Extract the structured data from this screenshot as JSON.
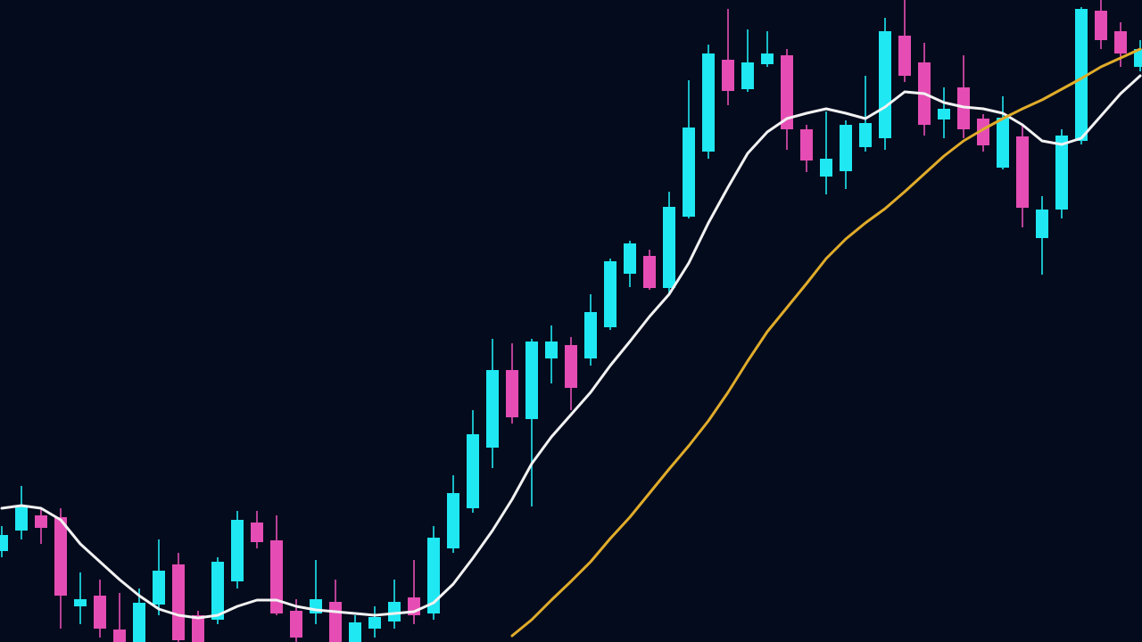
{
  "chart_data": {
    "type": "candlestick",
    "up_color": "#1fe8f2",
    "down_color": "#e54db4",
    "background": "#040b1d",
    "ylim": [
      0,
      720
    ],
    "open": [
      102,
      125,
      142,
      140,
      40,
      52,
      14,
      0,
      42,
      87,
      30,
      25,
      68,
      134,
      114,
      35,
      32,
      45,
      0,
      15,
      23,
      50,
      32,
      105,
      150,
      218,
      305,
      250,
      318,
      333,
      318,
      353,
      413,
      433,
      397,
      477,
      550,
      653,
      620,
      648,
      658,
      575,
      522,
      528,
      555,
      565,
      680,
      650,
      586,
      622,
      587,
      532,
      567,
      453,
      485,
      562,
      708,
      685,
      645
    ],
    "high": [
      130,
      175,
      150,
      150,
      78,
      70,
      55,
      60,
      115,
      100,
      35,
      95,
      147,
      147,
      142,
      48,
      92,
      70,
      30,
      40,
      70,
      92,
      130,
      187,
      260,
      340,
      335,
      340,
      355,
      342,
      390,
      430,
      450,
      440,
      505,
      630,
      670,
      710,
      687,
      685,
      665,
      580,
      595,
      585,
      635,
      700,
      720,
      672,
      622,
      658,
      592,
      612,
      580,
      500,
      575,
      712,
      720,
      695,
      675
    ],
    "low": [
      95,
      115,
      110,
      15,
      20,
      5,
      0,
      0,
      30,
      0,
      0,
      20,
      60,
      105,
      30,
      0,
      20,
      0,
      0,
      5,
      15,
      20,
      25,
      100,
      145,
      195,
      245,
      152,
      290,
      260,
      310,
      350,
      398,
      395,
      390,
      475,
      542,
      602,
      617,
      645,
      552,
      527,
      502,
      508,
      550,
      552,
      628,
      568,
      565,
      565,
      550,
      530,
      465,
      412,
      475,
      558,
      665,
      645,
      640
    ],
    "close": [
      120,
      152,
      128,
      52,
      48,
      15,
      0,
      44,
      80,
      2,
      0,
      90,
      137,
      112,
      32,
      5,
      48,
      0,
      22,
      28,
      45,
      30,
      117,
      167,
      233,
      305,
      252,
      337,
      337,
      285,
      370,
      427,
      447,
      397,
      488,
      577,
      660,
      618,
      650,
      660,
      575,
      540,
      542,
      580,
      582,
      685,
      635,
      580,
      598,
      575,
      557,
      588,
      487,
      485,
      568,
      710,
      675,
      660,
      665
    ],
    "lines": [
      {
        "color": "#f2f2f2",
        "values": [
          150,
          153,
          150,
          137,
          110,
          90,
          70,
          52,
          37,
          30,
          27,
          30,
          40,
          47,
          47,
          40,
          36,
          34,
          32,
          30,
          32,
          34,
          44,
          65,
          94,
          125,
          160,
          200,
          230,
          255,
          280,
          310,
          337,
          365,
          390,
          425,
          470,
          510,
          548,
          572,
          587,
          593,
          598,
          593,
          587,
          600,
          617,
          615,
          605,
          600,
          598,
          593,
          580,
          562,
          558,
          565,
          590,
          615,
          635
        ]
      },
      {
        "color": "#e0ac2a",
        "values": [
          null,
          null,
          null,
          null,
          null,
          null,
          null,
          null,
          null,
          null,
          null,
          null,
          null,
          null,
          null,
          null,
          null,
          null,
          null,
          null,
          null,
          null,
          null,
          null,
          null,
          null,
          7,
          25,
          47,
          68,
          90,
          116,
          140,
          167,
          194,
          220,
          248,
          280,
          315,
          348,
          375,
          402,
          430,
          452,
          470,
          486,
          505,
          525,
          545,
          562,
          575,
          587,
          598,
          608,
          620,
          632,
          645,
          655,
          665
        ]
      }
    ]
  }
}
